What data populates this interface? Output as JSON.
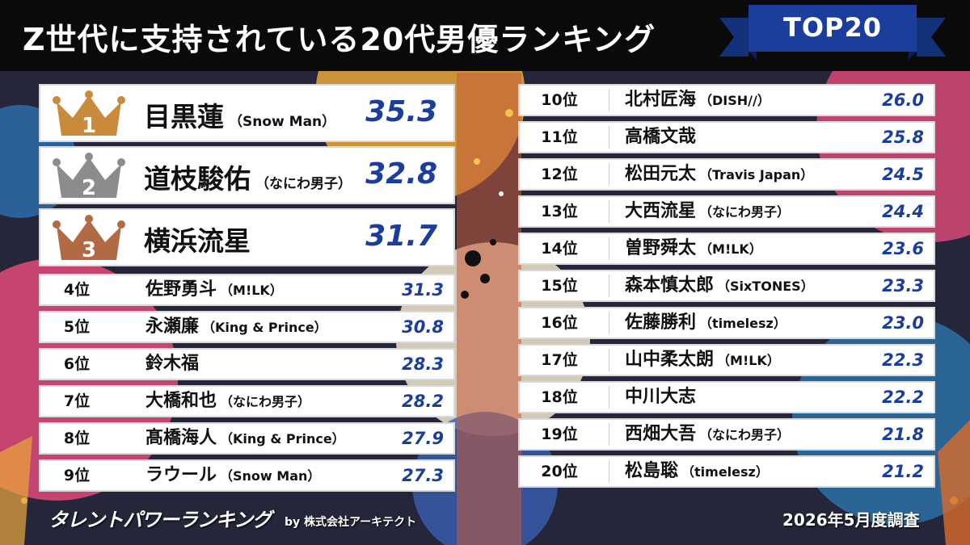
{
  "header": {
    "title": "Z世代に支持されている20代男優ランキング",
    "badge": "TOP20"
  },
  "colors": {
    "score": "#1b3e9c",
    "banner": "#1b3e9c",
    "gold": "#c98a3c",
    "silver": "#8c8c8c",
    "bronze": "#b26a45"
  },
  "top3": [
    {
      "medal": "1",
      "crown_icon": "gold-crown-icon",
      "name": "目黒蓮",
      "group": "（Snow Man）",
      "score": "35.3"
    },
    {
      "medal": "2",
      "crown_icon": "silver-crown-icon",
      "name": "道枝駿佑",
      "group": "（なにわ男子）",
      "score": "32.8"
    },
    {
      "medal": "3",
      "crown_icon": "bronze-crown-icon",
      "name": "横浜流星",
      "group": "",
      "score": "31.7"
    }
  ],
  "left_rows": [
    {
      "rank": "4位",
      "name": "佐野勇斗",
      "group": "（M!LK）",
      "score": "31.3"
    },
    {
      "rank": "5位",
      "name": "永瀬廉",
      "group": "（King & Prince）",
      "score": "30.8"
    },
    {
      "rank": "6位",
      "name": "鈴木福",
      "group": "",
      "score": "28.3"
    },
    {
      "rank": "7位",
      "name": "大橋和也",
      "group": "（なにわ男子）",
      "score": "28.2"
    },
    {
      "rank": "8位",
      "name": "髙橋海人",
      "group": "（King & Prince）",
      "score": "27.9"
    },
    {
      "rank": "9位",
      "name": "ラウール",
      "group": "（Snow Man）",
      "score": "27.3"
    }
  ],
  "right_rows": [
    {
      "rank": "10位",
      "name": "北村匠海",
      "group": "（DISH//）",
      "score": "26.0"
    },
    {
      "rank": "11位",
      "name": "高橋文哉",
      "group": "",
      "score": "25.8"
    },
    {
      "rank": "12位",
      "name": "松田元太",
      "group": "（Travis Japan）",
      "score": "24.5"
    },
    {
      "rank": "13位",
      "name": "大西流星",
      "group": "（なにわ男子）",
      "score": "24.4"
    },
    {
      "rank": "14位",
      "name": "曽野舜太",
      "group": "（M!LK）",
      "score": "23.6"
    },
    {
      "rank": "15位",
      "name": "森本慎太郎",
      "group": "（SixTONES）",
      "score": "23.3"
    },
    {
      "rank": "16位",
      "name": "佐藤勝利",
      "group": "（timelesz）",
      "score": "23.0"
    },
    {
      "rank": "17位",
      "name": "山中柔太朗",
      "group": "（M!LK）",
      "score": "22.3"
    },
    {
      "rank": "18位",
      "name": "中川大志",
      "group": "",
      "score": "22.2"
    },
    {
      "rank": "19位",
      "name": "西畑大吾",
      "group": "（なにわ男子）",
      "score": "21.8"
    },
    {
      "rank": "20位",
      "name": "松島聡",
      "group": "（timelesz）",
      "score": "21.2"
    }
  ],
  "footer": {
    "brand": "タレントパワーランキング",
    "by": "by 株式会社アーキテクト",
    "survey": "2026年5月度調査"
  }
}
